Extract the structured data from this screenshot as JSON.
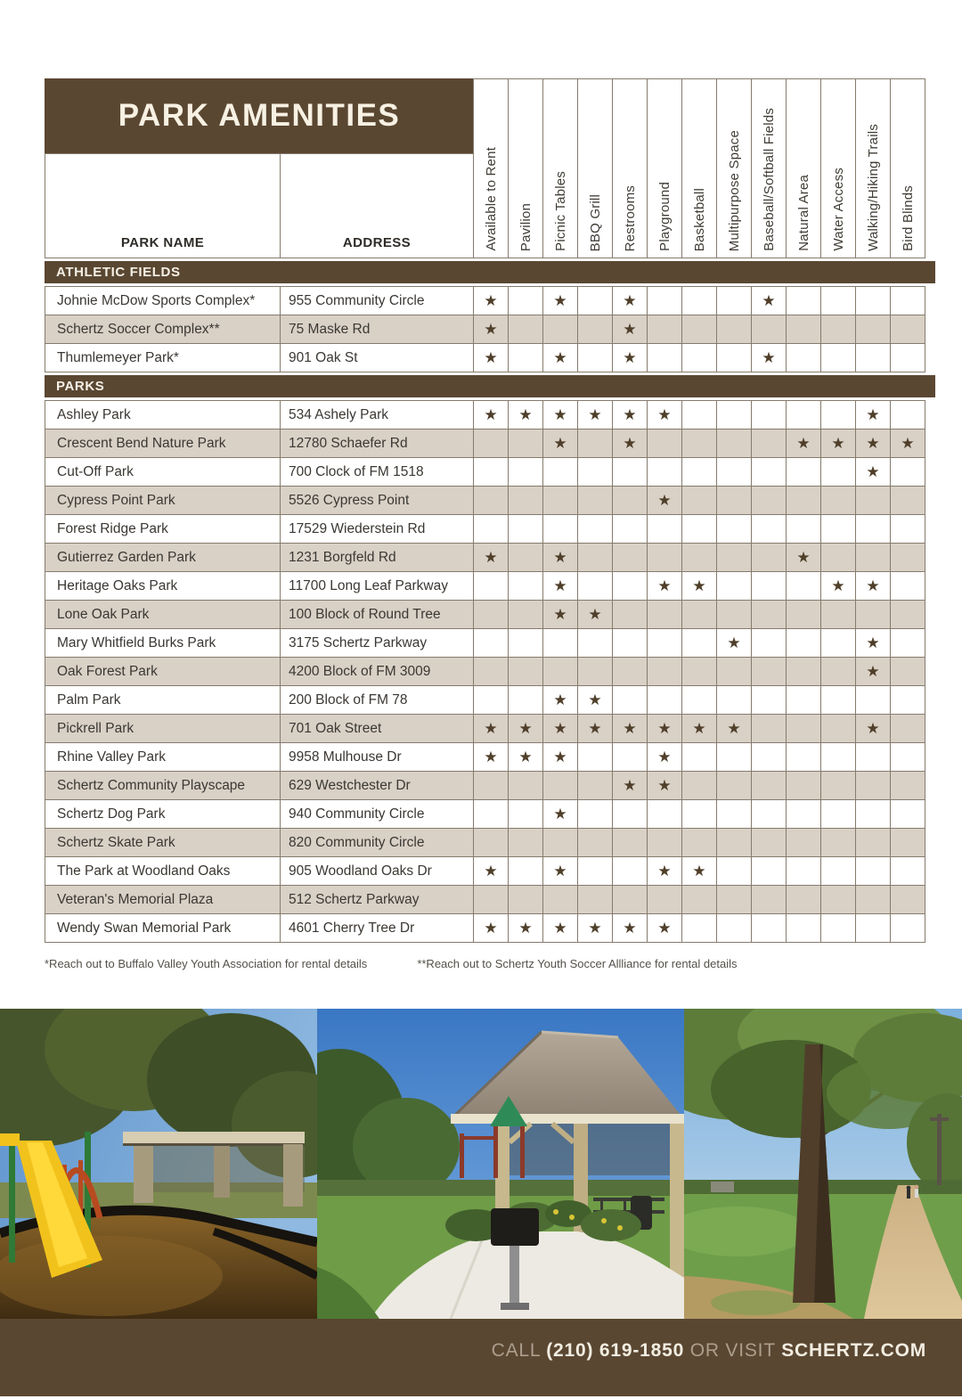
{
  "table": {
    "title": "PARK AMENITIES",
    "name_header": "PARK NAME",
    "address_header": "ADDRESS",
    "star_symbol": "★",
    "amenity_columns": [
      "Available to Rent",
      "Pavilion",
      "Picnic Tables",
      "BBQ Grill",
      "Restrooms",
      "Playground",
      "Basketball",
      "Multipurpose Space",
      "Baseball/Softball Fields",
      "Natural Area",
      "Water Access",
      "Walking/Hiking Trails",
      "Bird Blinds"
    ],
    "sections": [
      {
        "label": "ATHLETIC FIELDS",
        "rows": [
          {
            "name": "Johnie McDow Sports Complex*",
            "address": "955 Community Circle",
            "amenities": [
              0,
              2,
              4,
              8
            ]
          },
          {
            "name": "Schertz Soccer Complex**",
            "address": "75 Maske Rd",
            "amenities": [
              0,
              4
            ]
          },
          {
            "name": "Thumlemeyer Park*",
            "address": "901 Oak St",
            "amenities": [
              0,
              2,
              4,
              8
            ]
          }
        ]
      },
      {
        "label": "PARKS",
        "rows": [
          {
            "name": "Ashley Park",
            "address": "534 Ashely Park",
            "amenities": [
              0,
              1,
              2,
              3,
              4,
              5,
              11
            ]
          },
          {
            "name": "Crescent Bend Nature Park",
            "address": "12780 Schaefer Rd",
            "amenities": [
              2,
              4,
              9,
              10,
              11,
              12
            ]
          },
          {
            "name": "Cut-Off Park",
            "address": "700 Clock of FM 1518",
            "amenities": [
              11
            ]
          },
          {
            "name": "Cypress Point Park",
            "address": "5526 Cypress Point",
            "amenities": [
              5
            ]
          },
          {
            "name": "Forest Ridge Park",
            "address": "17529 Wiederstein Rd",
            "amenities": []
          },
          {
            "name": "Gutierrez Garden Park",
            "address": "1231 Borgfeld Rd",
            "amenities": [
              0,
              2,
              9
            ]
          },
          {
            "name": "Heritage Oaks Park",
            "address": "11700 Long Leaf Parkway",
            "amenities": [
              2,
              5,
              6,
              10,
              11
            ]
          },
          {
            "name": "Lone Oak Park",
            "address": "100 Block of Round Tree",
            "amenities": [
              2,
              3
            ]
          },
          {
            "name": "Mary Whitfield Burks Park",
            "address": "3175 Schertz Parkway",
            "amenities": [
              7,
              11
            ]
          },
          {
            "name": "Oak Forest Park",
            "address": "4200 Block of FM 3009",
            "amenities": [
              11
            ]
          },
          {
            "name": "Palm Park",
            "address": "200 Block of FM 78",
            "amenities": [
              2,
              3
            ]
          },
          {
            "name": "Pickrell Park",
            "address": "701 Oak Street",
            "amenities": [
              0,
              1,
              2,
              3,
              4,
              5,
              6,
              7,
              11
            ]
          },
          {
            "name": "Rhine Valley Park",
            "address": "9958 Mulhouse Dr",
            "amenities": [
              0,
              1,
              2,
              5
            ]
          },
          {
            "name": "Schertz Community Playscape",
            "address": "629 Westchester Dr",
            "amenities": [
              4,
              5
            ]
          },
          {
            "name": "Schertz Dog Park",
            "address": "940 Community Circle",
            "amenities": [
              2
            ]
          },
          {
            "name": "Schertz Skate Park",
            "address": "820 Community Circle",
            "amenities": []
          },
          {
            "name": "The Park at Woodland Oaks",
            "address": "905 Woodland Oaks Dr",
            "amenities": [
              0,
              2,
              5,
              6
            ]
          },
          {
            "name": "Veteran's Memorial Plaza",
            "address": "512 Schertz Parkway",
            "amenities": []
          },
          {
            "name": "Wendy Swan Memorial Park",
            "address": "4601 Cherry Tree Dr",
            "amenities": [
              0,
              1,
              2,
              3,
              4,
              5
            ]
          }
        ]
      }
    ]
  },
  "footnotes": [
    "*Reach out to Buffalo Valley Youth Association for rental details",
    "**Reach out to Schertz Youth Soccer Allliance for rental details"
  ],
  "photos": [
    {
      "name": "playground-with-yellow-slide-photo"
    },
    {
      "name": "park-pavilion-and-walkway-photo"
    },
    {
      "name": "walking-trail-with-tree-photo"
    }
  ],
  "footer": {
    "call_label": "CALL ",
    "phone": "(210) 619-1850",
    "or_visit_label": " OR VISIT ",
    "website": "SCHERTZ.COM"
  },
  "colors": {
    "brand_brown": "#5a4732",
    "row_shade": "#d9d1c6",
    "star": "#4f3f2a",
    "cream": "#f5f0e4",
    "table_border": "#857b6d"
  }
}
